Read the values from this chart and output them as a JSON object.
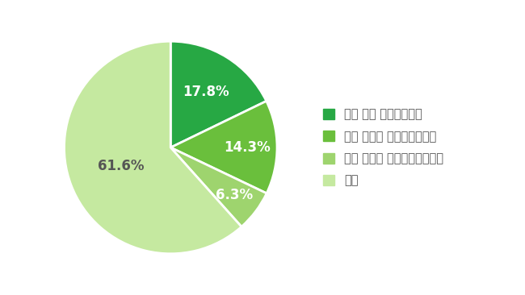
{
  "slices": [
    17.8,
    14.3,
    6.3,
    61.6
  ],
  "labels": [
    "17.8%",
    "14.3%",
    "6.3%",
    "61.6%"
  ],
  "colors": [
    "#27a844",
    "#6abf3c",
    "#9ed46e",
    "#c5e9a0"
  ],
  "legend_labels": [
    "ある 且つ 実行している",
    "ある しかし 実行していない",
    "ある しかし 続けられなかった",
    "ない"
  ],
  "legend_colors": [
    "#27a844",
    "#6abf3c",
    "#9ed46e",
    "#c5e9a0"
  ],
  "background_color": "#ffffff",
  "label_colors": [
    "#ffffff",
    "#ffffff",
    "#ffffff",
    "#555555"
  ],
  "label_fontsize": 12,
  "legend_fontsize": 10.5,
  "startangle": 90
}
